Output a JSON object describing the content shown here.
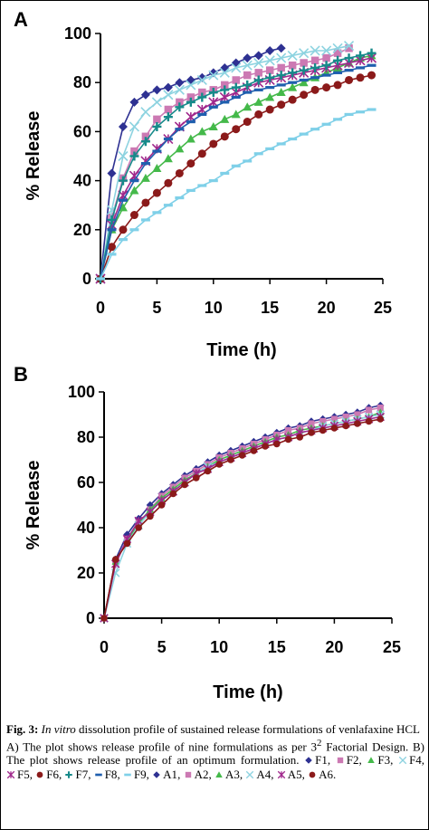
{
  "chart_data": [
    {
      "type": "line",
      "panel_label": "A",
      "xlabel": "Time (h)",
      "ylabel": "% Release",
      "xlim": [
        0,
        25
      ],
      "ylim": [
        0,
        100
      ],
      "xticks": [
        0,
        5,
        10,
        15,
        20,
        25
      ],
      "yticks": [
        0,
        20,
        40,
        60,
        80,
        100
      ],
      "grid": false,
      "series": [
        {
          "name": "F1",
          "color": "#2e3192",
          "marker": "diamond",
          "x": [
            0,
            1,
            2,
            3,
            4,
            5,
            6,
            7,
            8,
            9,
            10,
            11,
            12,
            13,
            14,
            15,
            16
          ],
          "y": [
            0,
            43,
            62,
            72,
            75,
            77,
            78,
            80,
            81,
            82,
            84,
            86,
            88,
            90,
            91,
            93,
            94
          ]
        },
        {
          "name": "F2",
          "color": "#cc79b3",
          "marker": "square",
          "x": [
            0,
            1,
            2,
            3,
            4,
            5,
            6,
            7,
            8,
            9,
            10,
            11,
            12,
            13,
            14,
            15,
            16,
            17,
            18,
            19,
            20,
            21,
            22
          ],
          "y": [
            0,
            25,
            41,
            52,
            58,
            65,
            69,
            72,
            74,
            76,
            77,
            79,
            81,
            83,
            84,
            85,
            86,
            87,
            88,
            89,
            90,
            92,
            94
          ]
        },
        {
          "name": "F3",
          "color": "#44b94a",
          "marker": "triangle",
          "x": [
            0,
            1,
            2,
            3,
            4,
            5,
            6,
            7,
            8,
            9,
            10,
            11,
            12,
            13,
            14,
            15,
            16,
            17,
            18,
            19,
            20,
            21,
            22,
            23,
            24
          ],
          "y": [
            0,
            20,
            29,
            36,
            41,
            45,
            49,
            53,
            57,
            60,
            62,
            65,
            67,
            70,
            72,
            74,
            76,
            78,
            80,
            82,
            84,
            86,
            88,
            90,
            91
          ]
        },
        {
          "name": "F4",
          "color": "#8dd3e0",
          "marker": "x",
          "x": [
            0,
            1,
            2,
            3,
            4,
            5,
            6,
            7,
            8,
            9,
            10,
            11,
            12,
            13,
            14,
            15,
            16,
            17,
            18,
            19,
            20,
            21,
            22
          ],
          "y": [
            0,
            28,
            50,
            62,
            68,
            72,
            75,
            77,
            79,
            81,
            83,
            84,
            86,
            87,
            88,
            89,
            90,
            91,
            92,
            93,
            93,
            94,
            95
          ]
        },
        {
          "name": "F5",
          "color": "#a0288c",
          "marker": "asterisk",
          "x": [
            0,
            1,
            2,
            3,
            4,
            5,
            6,
            7,
            8,
            9,
            10,
            11,
            12,
            13,
            14,
            15,
            16,
            17,
            18,
            19,
            20,
            21,
            22,
            23,
            24
          ],
          "y": [
            0,
            22,
            34,
            42,
            48,
            53,
            57,
            62,
            66,
            69,
            72,
            74,
            76,
            78,
            80,
            81,
            82,
            83,
            84,
            85,
            86,
            87,
            88,
            89,
            90
          ]
        },
        {
          "name": "F6",
          "color": "#8b1a1a",
          "marker": "circle",
          "x": [
            0,
            1,
            2,
            3,
            4,
            5,
            6,
            7,
            8,
            9,
            10,
            11,
            12,
            13,
            14,
            15,
            16,
            17,
            18,
            19,
            20,
            21,
            22,
            23,
            24
          ],
          "y": [
            0,
            13,
            20,
            26,
            31,
            35,
            39,
            43,
            47,
            51,
            55,
            58,
            61,
            64,
            67,
            69,
            71,
            73,
            75,
            77,
            78,
            79,
            81,
            82,
            83
          ]
        },
        {
          "name": "F7",
          "color": "#168a8a",
          "marker": "plus",
          "x": [
            0,
            1,
            2,
            3,
            4,
            5,
            6,
            7,
            8,
            9,
            10,
            11,
            12,
            13,
            14,
            15,
            16,
            17,
            18,
            19,
            20,
            21,
            22,
            23,
            24
          ],
          "y": [
            0,
            24,
            40,
            50,
            56,
            62,
            66,
            70,
            72,
            74,
            76,
            77,
            78,
            79,
            81,
            82,
            83,
            84,
            85,
            86,
            87,
            89,
            90,
            91,
            92
          ]
        },
        {
          "name": "F8",
          "color": "#1f5fae",
          "marker": "dash",
          "x": [
            0,
            1,
            2,
            3,
            4,
            5,
            6,
            7,
            8,
            9,
            10,
            11,
            12,
            13,
            14,
            15,
            16,
            17,
            18,
            19,
            20,
            21,
            22,
            23,
            24
          ],
          "y": [
            0,
            20,
            32,
            40,
            47,
            52,
            57,
            61,
            64,
            67,
            70,
            72,
            74,
            76,
            77,
            78,
            79,
            80,
            81,
            82,
            83,
            84,
            85,
            86,
            87
          ]
        },
        {
          "name": "F9",
          "color": "#7fd0e8",
          "marker": "dash",
          "x": [
            0,
            1,
            2,
            3,
            4,
            5,
            6,
            7,
            8,
            9,
            10,
            11,
            12,
            13,
            14,
            15,
            16,
            17,
            18,
            19,
            20,
            21,
            22,
            23,
            24
          ],
          "y": [
            0,
            10,
            16,
            20,
            24,
            27,
            30,
            33,
            36,
            38,
            40,
            43,
            46,
            48,
            51,
            53,
            55,
            57,
            59,
            61,
            63,
            65,
            67,
            68,
            69
          ]
        }
      ]
    },
    {
      "type": "line",
      "panel_label": "B",
      "xlabel": "Time (h)",
      "ylabel": "% Release",
      "xlim": [
        0,
        25
      ],
      "ylim": [
        0,
        100
      ],
      "xticks": [
        0,
        5,
        10,
        15,
        20,
        25
      ],
      "yticks": [
        0,
        20,
        40,
        60,
        80,
        100
      ],
      "grid": false,
      "series": [
        {
          "name": "A1",
          "color": "#2e3192",
          "marker": "diamond",
          "x": [
            0,
            1,
            2,
            3,
            4,
            5,
            6,
            7,
            8,
            9,
            10,
            11,
            12,
            13,
            14,
            15,
            16,
            17,
            18,
            19,
            20,
            21,
            22,
            23,
            24
          ],
          "y": [
            0,
            26,
            37,
            44,
            50,
            55,
            59,
            63,
            66,
            69,
            72,
            74,
            76,
            78,
            80,
            82,
            84,
            85,
            87,
            88,
            89,
            90,
            91,
            93,
            94
          ]
        },
        {
          "name": "A2",
          "color": "#cc79b3",
          "marker": "square",
          "x": [
            0,
            1,
            2,
            3,
            4,
            5,
            6,
            7,
            8,
            9,
            10,
            11,
            12,
            13,
            14,
            15,
            16,
            17,
            18,
            19,
            20,
            21,
            22,
            23,
            24
          ],
          "y": [
            0,
            25,
            35,
            42,
            48,
            54,
            58,
            62,
            65,
            68,
            71,
            73,
            75,
            77,
            79,
            81,
            83,
            84,
            86,
            87,
            88,
            89,
            90,
            92,
            93
          ]
        },
        {
          "name": "A3",
          "color": "#44b94a",
          "marker": "triangle",
          "x": [
            0,
            1,
            2,
            3,
            4,
            5,
            6,
            7,
            8,
            9,
            10,
            11,
            12,
            13,
            14,
            15,
            16,
            17,
            18,
            19,
            20,
            21,
            22,
            23,
            24
          ],
          "y": [
            0,
            25,
            34,
            42,
            48,
            53,
            57,
            61,
            64,
            67,
            70,
            72,
            74,
            76,
            78,
            80,
            81,
            83,
            84,
            85,
            86,
            87,
            88,
            89,
            91
          ]
        },
        {
          "name": "A4",
          "color": "#8dd3e0",
          "marker": "x",
          "x": [
            0,
            1,
            2,
            3,
            4,
            5,
            6,
            7,
            8,
            9,
            10,
            11,
            12,
            13,
            14,
            15,
            16,
            17,
            18,
            19,
            20,
            21,
            22,
            23,
            24
          ],
          "y": [
            0,
            20,
            33,
            41,
            47,
            52,
            56,
            60,
            64,
            67,
            69,
            71,
            73,
            75,
            77,
            79,
            80,
            82,
            83,
            85,
            86,
            87,
            88,
            89,
            90
          ]
        },
        {
          "name": "A5",
          "color": "#a0288c",
          "marker": "asterisk",
          "x": [
            0,
            1,
            2,
            3,
            4,
            5,
            6,
            7,
            8,
            9,
            10,
            11,
            12,
            13,
            14,
            15,
            16,
            17,
            18,
            19,
            20,
            21,
            22,
            23,
            24
          ],
          "y": [
            0,
            24,
            35,
            43,
            47,
            52,
            56,
            60,
            64,
            66,
            69,
            71,
            73,
            75,
            77,
            79,
            80,
            82,
            83,
            84,
            85,
            86,
            87,
            88,
            89
          ]
        },
        {
          "name": "A6",
          "color": "#8b1a1a",
          "marker": "circle",
          "x": [
            0,
            1,
            2,
            3,
            4,
            5,
            6,
            7,
            8,
            9,
            10,
            11,
            12,
            13,
            14,
            15,
            16,
            17,
            18,
            19,
            20,
            21,
            22,
            23,
            24
          ],
          "y": [
            0,
            26,
            33,
            40,
            45,
            50,
            55,
            59,
            62,
            65,
            68,
            70,
            72,
            74,
            76,
            77,
            79,
            80,
            82,
            83,
            84,
            85,
            86,
            87,
            88
          ]
        }
      ]
    }
  ],
  "caption": {
    "fig_label": "Fig. 3:",
    "title_italic": "In vitro",
    "title_rest": " dissolution profile of sustained release formulations of venlafaxine HCL",
    "description": "A) The plot shows release profile of nine formulations as per 3",
    "description_sup": "2",
    "description_rest": " Factorial Design. B) The plot shows release profile of an optimum formulation.",
    "legend": [
      {
        "name": "F1",
        "color": "#2e3192",
        "marker": "diamond"
      },
      {
        "name": "F2",
        "color": "#cc79b3",
        "marker": "square"
      },
      {
        "name": "F3",
        "color": "#44b94a",
        "marker": "triangle"
      },
      {
        "name": "F4",
        "color": "#8dd3e0",
        "marker": "x"
      },
      {
        "name": "F5",
        "color": "#a0288c",
        "marker": "asterisk"
      },
      {
        "name": "F6",
        "color": "#8b1a1a",
        "marker": "circle"
      },
      {
        "name": "F7",
        "color": "#168a8a",
        "marker": "plus"
      },
      {
        "name": "F8",
        "color": "#1f5fae",
        "marker": "dash"
      },
      {
        "name": "F9",
        "color": "#7fd0e8",
        "marker": "dash"
      },
      {
        "name": "A1",
        "color": "#2e3192",
        "marker": "diamond"
      },
      {
        "name": "A2",
        "color": "#cc79b3",
        "marker": "square"
      },
      {
        "name": "A3",
        "color": "#44b94a",
        "marker": "triangle"
      },
      {
        "name": "A4",
        "color": "#8dd3e0",
        "marker": "x"
      },
      {
        "name": "A5",
        "color": "#a0288c",
        "marker": "asterisk"
      },
      {
        "name": "A6",
        "color": "#8b1a1a",
        "marker": "circle"
      }
    ]
  }
}
